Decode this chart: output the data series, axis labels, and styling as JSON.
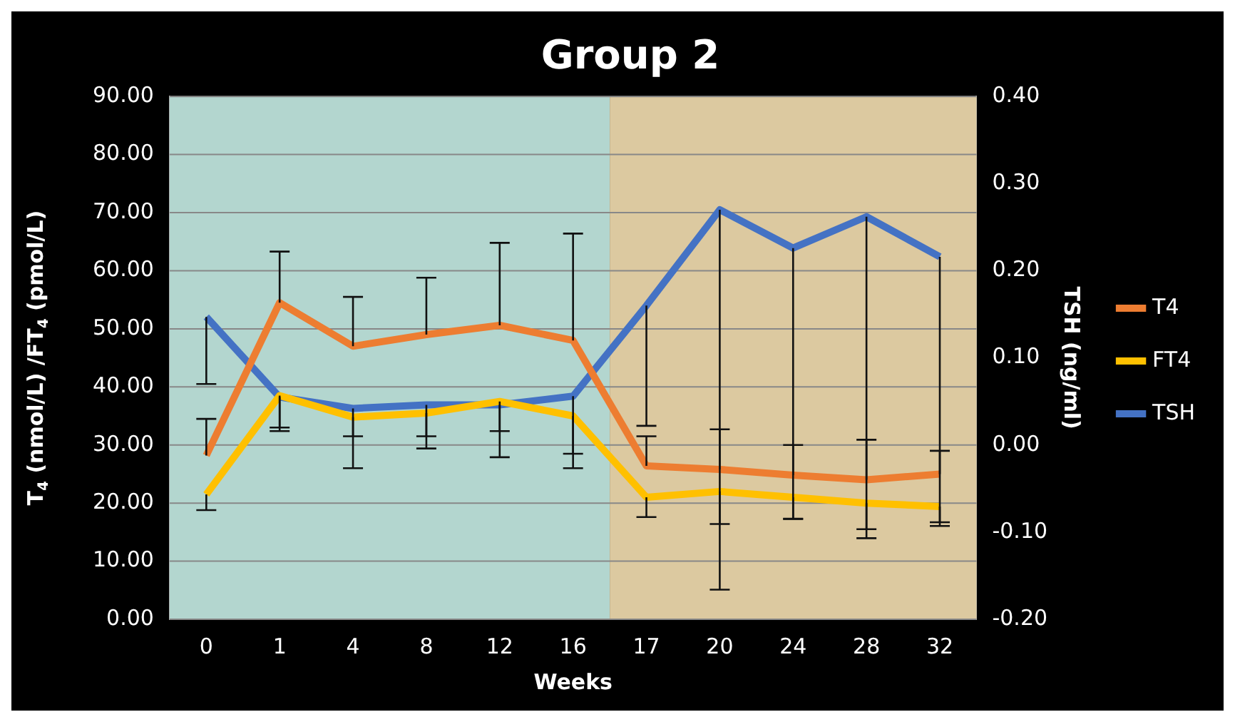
{
  "chart_data": {
    "type": "line",
    "title": "Group 2",
    "xlabel": "Weeks",
    "ylabel": "T$_{4}$ (nmol/L) /FT$_{4}$ (pmol/L)",
    "y2label": "TSH (ng/ml)",
    "categories": [
      "0",
      "1",
      "4",
      "8",
      "12",
      "16",
      "17",
      "20",
      "24",
      "28",
      "32"
    ],
    "series": [
      {
        "name": "T4",
        "color": "#ed7d31",
        "values": [
          28.2,
          54.5,
          47,
          49,
          50.6,
          48,
          26.4,
          25.8,
          24.8,
          24,
          25
        ],
        "errors": [
          [
            28.2,
            34.5
          ],
          [
            54.5,
            63.3
          ],
          [
            47,
            55.5
          ],
          [
            49,
            58.8
          ],
          [
            50.6,
            64.8
          ],
          [
            48,
            66.4
          ],
          [
            26.4,
            31.5
          ],
          [
            25.8,
            32.7
          ],
          [
            24.8,
            30
          ],
          [
            24,
            30.9
          ],
          [
            25,
            29
          ]
        ]
      },
      {
        "name": "FT4",
        "color": "#ffc000",
        "values": [
          21.5,
          38.5,
          34.8,
          35.5,
          37.5,
          35,
          21,
          22,
          21,
          20,
          19.4
        ],
        "errors": [
          [
            18.8,
            21.5
          ],
          [
            32.4,
            38.5
          ],
          [
            26,
            34.8
          ],
          [
            29.4,
            35.5
          ],
          [
            27.9,
            37.5
          ],
          [
            26,
            35
          ],
          [
            17.6,
            21
          ],
          [
            16.4,
            22
          ],
          [
            17.3,
            21
          ],
          [
            15.5,
            20
          ],
          [
            16.7,
            19.4
          ]
        ]
      },
      {
        "name": "TSH",
        "color": "#4472c4",
        "axis": "y2",
        "values": [
          0.147,
          0.055,
          0.042,
          0.046,
          0.046,
          0.056,
          0.16,
          0.27,
          0.226,
          0.262,
          0.216
        ],
        "errors": [
          [
            0.07,
            0.147
          ],
          [
            0.02,
            0.055
          ],
          [
            0.01,
            0.042
          ],
          [
            0.01,
            0.046
          ],
          [
            0.016,
            0.046
          ],
          [
            -0.01,
            0.056
          ],
          [
            0.022,
            0.16
          ],
          [
            -0.166,
            0.27
          ],
          [
            -0.085,
            0.226
          ],
          [
            -0.107,
            0.262
          ],
          [
            -0.093,
            0.216
          ]
        ]
      }
    ],
    "ylim": [
      0,
      90
    ],
    "yticks": [
      {
        "value": 0,
        "label": "0.00"
      },
      {
        "value": 10,
        "label": "10.00"
      },
      {
        "value": 20,
        "label": "20.00"
      },
      {
        "value": 30,
        "label": "30.00"
      },
      {
        "value": 40,
        "label": "40.00"
      },
      {
        "value": 50,
        "label": "50.00"
      },
      {
        "value": 60,
        "label": "60.00"
      },
      {
        "value": 70,
        "label": "70.00"
      },
      {
        "value": 80,
        "label": "80.00"
      },
      {
        "value": 90,
        "label": "90.00"
      }
    ],
    "y2lim": [
      -0.2,
      0.4
    ],
    "y2ticks": [
      {
        "value": -0.2,
        "label": "-0.20"
      },
      {
        "value": -0.1,
        "label": "-0.10"
      },
      {
        "value": 0,
        "label": "0.00"
      },
      {
        "value": 0.1,
        "label": "0.10"
      },
      {
        "value": 0.2,
        "label": "0.20"
      },
      {
        "value": 0.3,
        "label": "0.30"
      },
      {
        "value": 0.4,
        "label": "0.40"
      }
    ],
    "bands": [
      {
        "axis": "x",
        "from": "0",
        "to": "16",
        "color": "#b3d6cf"
      },
      {
        "axis": "x",
        "from": "17",
        "to": "32",
        "color": "#dcc9a0"
      }
    ],
    "grid": "y",
    "legend": "right",
    "line_style": "solid",
    "marker": "none"
  }
}
